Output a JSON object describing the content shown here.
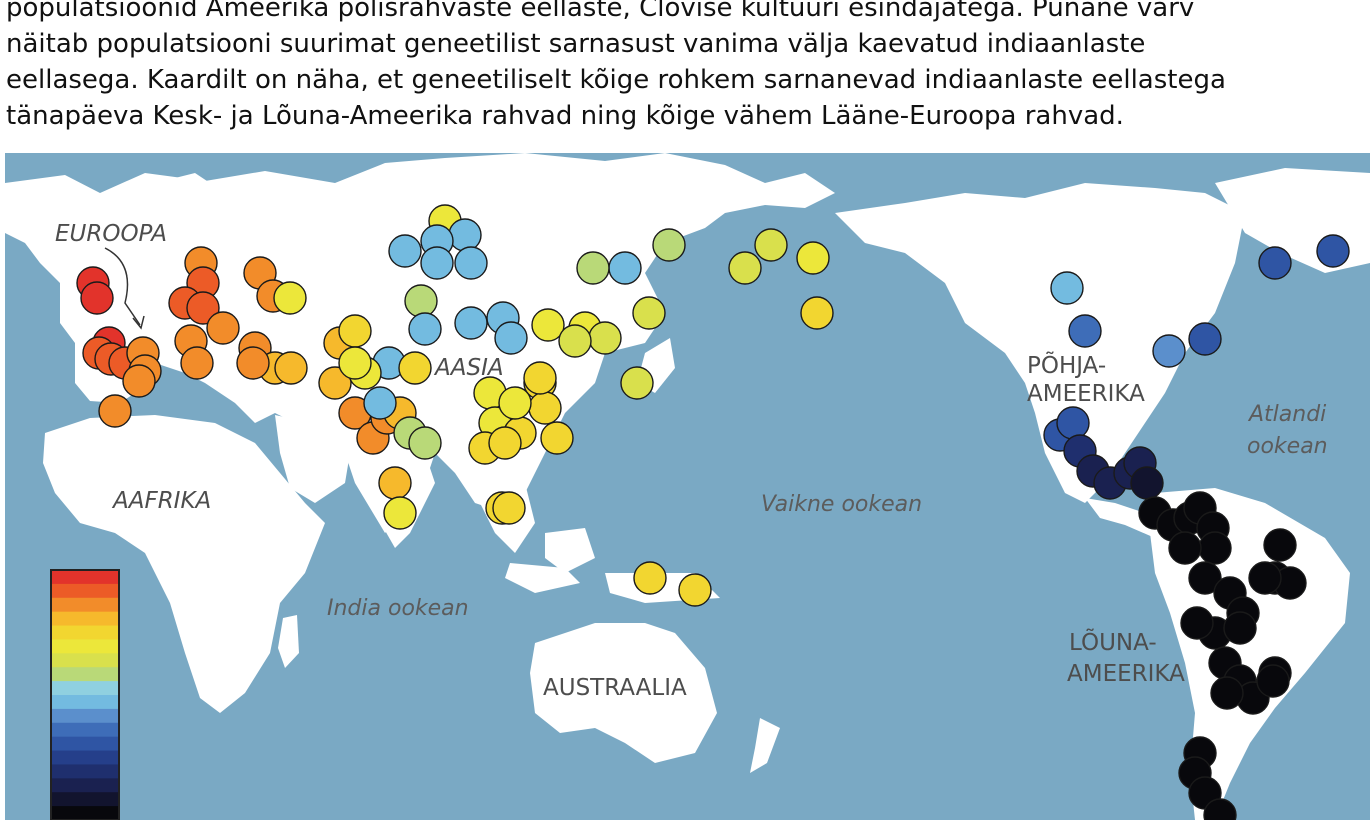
{
  "caption": {
    "lines": [
      "populatsioonid Ameerika põlisrahvaste eellaste, Clovise kultuuri esindajatega. Punane värv",
      "näitab populatsiooni suurimat geneetilist sarnasust vanima välja kaevatud indiaanlaste",
      "eellasega. Kaardilt on näha, et geneetiliselt kõige rohkem sarnanevad indiaanlaste eellastega",
      "tänapäeva Kesk- ja Lõuna-Ameerika rahvad  ning  kõige vähem Lääne-Euroopa rahvad."
    ]
  },
  "map": {
    "colors": {
      "ocean": "#7aa9c4",
      "land": "#ffffff",
      "marker_outline": "#1a1a1a"
    },
    "labels": {
      "europe": "EUROOPA",
      "asia": "AASIA",
      "africa": "AAFRIKA",
      "australia": "AUSTRAALIA",
      "north_america_1": "PÕHJA-",
      "north_america_2": "AMEERIKA",
      "south_america_1": "LÕUNA-",
      "south_america_2": "AMEERIKA",
      "pacific": "Vaikne ookean",
      "indian": "India ookean",
      "atlantic_1": "Atlandi",
      "atlantic_2": "ookean"
    },
    "legend_colors": [
      "#e2332b",
      "#ec5b27",
      "#f28c2a",
      "#f6b92c",
      "#f2d630",
      "#ece73a",
      "#d9e04c",
      "#b9d978",
      "#8fd0e0",
      "#73bbe0",
      "#5b8fcc",
      "#3e6db8",
      "#2f55a4",
      "#253f8a",
      "#1f2f6e",
      "#1a2150",
      "#12142e",
      "#08080c"
    ],
    "populations": [
      {
        "level": 17
      },
      {
        "level": 17
      },
      {
        "level": 17
      },
      {
        "level": 16
      },
      {
        "level": 16
      },
      {
        "level": 16
      },
      {
        "level": 15
      },
      {
        "level": 15
      },
      {
        "level": 15
      },
      {
        "level": 15
      },
      {
        "level": 15
      },
      {
        "level": 16
      },
      {
        "level": 16
      },
      {
        "level": 16
      },
      {
        "level": 15
      },
      {
        "level": 15
      },
      {
        "level": 14
      },
      {
        "level": 15
      },
      {
        "level": 15
      },
      {
        "level": 12
      },
      {
        "level": 15
      },
      {
        "level": 15
      },
      {
        "level": 15
      },
      {
        "level": 14
      },
      {
        "level": 14
      },
      {
        "level": 13
      },
      {
        "level": 14
      },
      {
        "level": 15
      },
      {
        "level": 15
      },
      {
        "level": 15
      },
      {
        "level": 14
      },
      {
        "level": 14
      },
      {
        "level": 12
      },
      {
        "level": 12
      },
      {
        "level": 8
      },
      {
        "level": 8
      },
      {
        "level": 8
      },
      {
        "level": 8
      },
      {
        "level": 8
      },
      {
        "level": 8
      },
      {
        "level": 8
      },
      {
        "level": 8
      },
      {
        "level": 8
      },
      {
        "level": 10
      },
      {
        "level": 10
      },
      {
        "level": 10
      },
      {
        "level": 8
      },
      {
        "level": 8
      },
      {
        "level": 8
      },
      {
        "level": 12
      },
      {
        "level": 12
      },
      {
        "level": 13
      },
      {
        "level": 12
      },
      {
        "level": 12
      },
      {
        "level": 13
      },
      {
        "level": 13
      },
      {
        "level": 13
      },
      {
        "level": 13
      },
      {
        "level": 13
      },
      {
        "level": 13
      },
      {
        "level": 12
      },
      {
        "level": 12
      },
      {
        "level": 11
      },
      {
        "level": 11
      },
      {
        "level": 11
      },
      {
        "level": 11
      },
      {
        "level": 10
      },
      {
        "level": 10
      },
      {
        "level": 13
      },
      {
        "level": 13
      },
      {
        "level": 13
      },
      {
        "level": 12
      },
      {
        "level": 13
      },
      {
        "level": 13
      },
      {
        "level": 11
      },
      {
        "level": 11
      },
      {
        "level": 12
      },
      {
        "level": 13
      },
      {
        "level": 8
      },
      {
        "level": 6
      },
      {
        "level": 7
      },
      {
        "level": 5
      },
      {
        "level": 5
      },
      {
        "level": 5
      },
      {
        "level": 5
      },
      {
        "level": 5
      },
      {
        "level": 3
      },
      {
        "level": 2
      },
      {
        "level": 2
      },
      {
        "level": 2
      },
      {
        "level": 2
      },
      {
        "level": 1
      },
      {
        "level": 0
      },
      {
        "level": 0
      },
      {
        "level": 0
      },
      {
        "level": 0
      },
      {
        "level": 0
      },
      {
        "level": 0
      },
      {
        "level": 0
      },
      {
        "level": 0
      },
      {
        "level": 0
      },
      {
        "level": 0
      },
      {
        "level": 0
      },
      {
        "level": 0
      },
      {
        "level": 0
      },
      {
        "level": 0
      },
      {
        "level": 0
      },
      {
        "level": 0
      },
      {
        "level": 0
      },
      {
        "level": 0
      },
      {
        "level": 0
      },
      {
        "level": 0
      },
      {
        "level": 0
      },
      {
        "level": 0
      },
      {
        "level": 0
      },
      {
        "level": 0
      },
      {
        "level": 0
      },
      {
        "level": 0
      },
      {
        "level": 0
      },
      {
        "level": 0
      },
      {
        "level": 0
      },
      {
        "level": 0
      },
      {
        "level": 0
      },
      {
        "level": 0
      },
      {
        "level": 0
      },
      {
        "level": 0
      },
      {
        "level": 15
      },
      {
        "level": 14
      }
    ]
  }
}
